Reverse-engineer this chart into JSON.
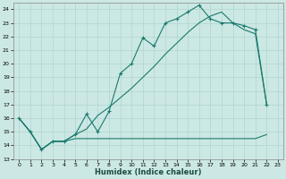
{
  "background_color": "#cce8e4",
  "line_color": "#1a7a6e",
  "grid_color": "#aed4cf",
  "xlabel": "Humidex (Indice chaleur)",
  "xlim": [
    -0.5,
    23.5
  ],
  "ylim": [
    13,
    24.5
  ],
  "yticks": [
    13,
    14,
    15,
    16,
    17,
    18,
    19,
    20,
    21,
    22,
    23,
    24
  ],
  "xticks": [
    0,
    1,
    2,
    3,
    4,
    5,
    6,
    7,
    8,
    9,
    10,
    11,
    12,
    13,
    14,
    15,
    16,
    17,
    18,
    19,
    20,
    21,
    22,
    23
  ],
  "line_flat_x": [
    0,
    1,
    2,
    3,
    4,
    5,
    6,
    7,
    8,
    9,
    10,
    11,
    12,
    13,
    14,
    15,
    16,
    17,
    18,
    19,
    20,
    21,
    22
  ],
  "line_flat_y": [
    16.0,
    15.0,
    13.7,
    14.3,
    14.3,
    14.5,
    14.5,
    14.5,
    14.5,
    14.5,
    14.5,
    14.5,
    14.5,
    14.5,
    14.5,
    14.5,
    14.5,
    14.5,
    14.5,
    14.5,
    14.5,
    14.5,
    14.8
  ],
  "line_jagged_x": [
    0,
    1,
    2,
    3,
    4,
    5,
    6,
    7,
    8,
    9,
    10,
    11,
    12,
    13,
    14,
    15,
    16,
    17,
    18,
    19,
    20,
    21,
    22
  ],
  "line_jagged_y": [
    16.0,
    15.0,
    13.7,
    14.3,
    14.3,
    14.8,
    16.3,
    15.0,
    16.5,
    19.3,
    20.0,
    21.9,
    21.3,
    23.0,
    23.3,
    23.8,
    24.3,
    23.3,
    23.0,
    23.0,
    22.8,
    22.5,
    17.0
  ],
  "line_smooth_x": [
    0,
    1,
    2,
    3,
    4,
    5,
    6,
    7,
    8,
    9,
    10,
    11,
    12,
    13,
    14,
    15,
    16,
    17,
    18,
    19,
    20,
    21,
    22
  ],
  "line_smooth_y": [
    16.0,
    15.0,
    13.7,
    14.3,
    14.3,
    14.8,
    15.2,
    16.2,
    16.8,
    17.5,
    18.2,
    19.0,
    19.8,
    20.7,
    21.5,
    22.3,
    23.0,
    23.5,
    23.8,
    23.0,
    22.5,
    22.2,
    17.0
  ],
  "figsize": [
    3.2,
    2.0
  ],
  "dpi": 100
}
